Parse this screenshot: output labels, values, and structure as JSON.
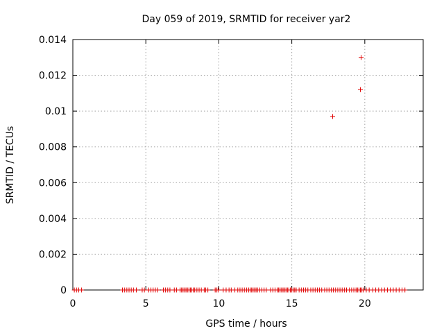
{
  "chart_data": {
    "type": "scatter",
    "title": "Day 059 of 2019, SRMTID for receiver yar2",
    "xlabel": "GPS time / hours",
    "ylabel": "SRMTID / TECUs",
    "xlim": [
      0,
      24
    ],
    "ylim": [
      0,
      0.014
    ],
    "xticks": [
      0,
      5,
      10,
      15,
      20
    ],
    "yticks": [
      0,
      0.002,
      0.004,
      0.006,
      0.008,
      0.01,
      0.012,
      0.014
    ],
    "xtick_labels": [
      "0",
      "5",
      "10",
      "15",
      "20"
    ],
    "ytick_labels": [
      "0",
      "0.002",
      "0.004",
      "0.006",
      "0.008",
      "0.01",
      "0.012",
      "0.014"
    ],
    "grid": true,
    "marker": "+",
    "color": "#e00000",
    "series": [
      {
        "x": [
          0.1,
          0.25,
          0.4,
          0.6,
          3.4,
          3.55,
          3.7,
          3.85,
          4.0,
          4.15,
          4.35,
          4.75,
          4.9,
          5.2,
          5.35,
          5.5,
          5.65,
          5.8,
          6.2,
          6.35,
          6.5,
          6.65,
          6.95,
          7.1,
          7.35,
          7.45,
          7.55,
          7.65,
          7.75,
          7.85,
          7.95,
          8.05,
          8.15,
          8.25,
          8.35,
          8.5,
          8.65,
          8.8,
          9.0,
          9.1,
          9.25,
          9.75,
          9.85,
          9.95,
          10.3,
          10.5,
          10.7,
          10.85,
          11.1,
          11.3,
          11.45,
          11.6,
          11.75,
          11.9,
          12.05,
          12.15,
          12.25,
          12.35,
          12.45,
          12.55,
          12.65,
          12.8,
          12.95,
          13.1,
          13.25,
          13.55,
          13.7,
          13.85,
          14.0,
          14.1,
          14.2,
          14.3,
          14.4,
          14.5,
          14.6,
          14.7,
          14.8,
          14.9,
          15.0,
          15.1,
          15.2,
          15.3,
          15.5,
          15.65,
          15.8,
          15.95,
          16.1,
          16.3,
          16.45,
          16.6,
          16.75,
          16.9,
          17.05,
          17.25,
          17.4,
          17.55,
          17.7,
          17.85,
          18.0,
          18.15,
          18.3,
          18.45,
          18.6,
          18.75,
          18.95,
          19.1,
          19.25,
          19.4,
          19.5,
          19.6,
          19.7,
          19.8,
          19.9,
          20.1,
          20.3,
          20.55,
          20.75,
          20.95,
          21.15,
          21.35,
          21.55,
          21.75,
          21.95,
          22.15,
          22.35,
          22.55,
          22.75,
          17.8,
          19.7,
          19.75
        ],
        "y": [
          0,
          0,
          0,
          0,
          0,
          0,
          0,
          0,
          0,
          0,
          0,
          0,
          0,
          0,
          0,
          0,
          0,
          0,
          0,
          0,
          0,
          0,
          0,
          0,
          0,
          0,
          0,
          0,
          0,
          0,
          0,
          0,
          0,
          0,
          0,
          0,
          0,
          0,
          0,
          0,
          0,
          0,
          0,
          0,
          0,
          0,
          0,
          0,
          0,
          0,
          0,
          0,
          0,
          0,
          0,
          0,
          0,
          0,
          0,
          0,
          0,
          0,
          0,
          0,
          0,
          0,
          0,
          0,
          0,
          0,
          0,
          0,
          0,
          0,
          0,
          0,
          0,
          0,
          0,
          0,
          0,
          0,
          0,
          0,
          0,
          0,
          0,
          0,
          0,
          0,
          0,
          0,
          0,
          0,
          0,
          0,
          0,
          0,
          0,
          0,
          0,
          0,
          0,
          0,
          0,
          0,
          0,
          0,
          0,
          0,
          0,
          0,
          0,
          0,
          0,
          0,
          0,
          0,
          0,
          0,
          0,
          0,
          0,
          0,
          0,
          0,
          0,
          0.0097,
          0.0112,
          0.013
        ]
      }
    ]
  }
}
